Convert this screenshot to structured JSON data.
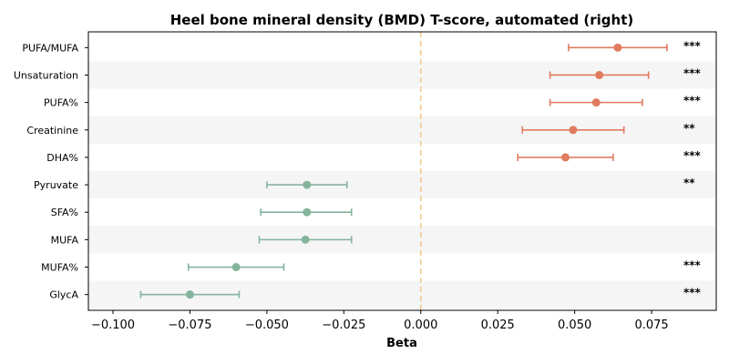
{
  "chart_data": {
    "type": "forest",
    "title": "Heel bone mineral density (BMD) T-score, automated (right)",
    "xlabel": "Beta",
    "xlim": [
      -0.108,
      0.096
    ],
    "xticks": [
      -0.1,
      -0.075,
      -0.05,
      -0.025,
      0.0,
      0.025,
      0.05,
      0.075
    ],
    "xtick_labels": [
      "−0.100",
      "−0.075",
      "−0.050",
      "−0.025",
      "0.000",
      "0.025",
      "0.050",
      "0.075"
    ],
    "reference_line": 0.0,
    "colors": {
      "positive": "#e07b5f",
      "negative": "#85b49d",
      "reference": "#f0c987",
      "band": "#f5f5f5"
    },
    "rows": [
      {
        "label": "PUFA/MUFA",
        "beta": 0.064,
        "ci_low": 0.048,
        "ci_high": 0.08,
        "sig": "***"
      },
      {
        "label": "Unsaturation",
        "beta": 0.058,
        "ci_low": 0.042,
        "ci_high": 0.074,
        "sig": "***"
      },
      {
        "label": "PUFA%",
        "beta": 0.057,
        "ci_low": 0.042,
        "ci_high": 0.072,
        "sig": "***"
      },
      {
        "label": "Creatinine",
        "beta": 0.0495,
        "ci_low": 0.033,
        "ci_high": 0.066,
        "sig": "**"
      },
      {
        "label": "DHA%",
        "beta": 0.047,
        "ci_low": 0.0315,
        "ci_high": 0.0625,
        "sig": "***"
      },
      {
        "label": "Pyruvate",
        "beta": -0.037,
        "ci_low": -0.05,
        "ci_high": -0.024,
        "sig": "**"
      },
      {
        "label": "SFA%",
        "beta": -0.037,
        "ci_low": -0.052,
        "ci_high": -0.0225,
        "sig": ""
      },
      {
        "label": "MUFA",
        "beta": -0.0375,
        "ci_low": -0.0525,
        "ci_high": -0.0225,
        "sig": ""
      },
      {
        "label": "MUFA%",
        "beta": -0.06,
        "ci_low": -0.0755,
        "ci_high": -0.0445,
        "sig": "***"
      },
      {
        "label": "GlycA",
        "beta": -0.075,
        "ci_low": -0.091,
        "ci_high": -0.059,
        "sig": "***"
      }
    ]
  }
}
